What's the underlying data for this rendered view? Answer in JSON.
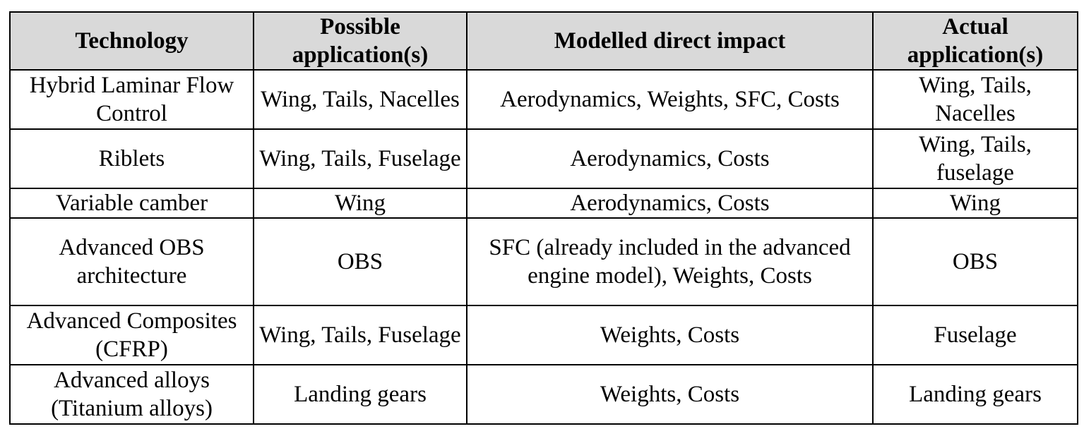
{
  "table": {
    "headers": [
      "Technology",
      "Possible application(s)",
      "Modelled direct impact",
      "Actual application(s)"
    ],
    "rows": [
      {
        "technology": "Hybrid Laminar Flow Control",
        "possible": "Wing, Tails, Nacelles",
        "impact": "Aerodynamics, Weights, SFC, Costs",
        "actual": "Wing, Tails, Nacelles"
      },
      {
        "technology": "Riblets",
        "possible": "Wing, Tails, Fuselage",
        "impact": "Aerodynamics, Costs",
        "actual": "Wing, Tails, fuselage"
      },
      {
        "technology": "Variable camber",
        "possible": "Wing",
        "impact": "Aerodynamics, Costs",
        "actual": "Wing"
      },
      {
        "technology": "Advanced OBS architecture",
        "possible": "OBS",
        "impact": "SFC (already included in the advanced engine model), Weights, Costs",
        "actual": "OBS"
      },
      {
        "technology": "Advanced Composites (CFRP)",
        "possible": "Wing, Tails, Fuselage",
        "impact": "Weights, Costs",
        "actual": "Fuselage"
      },
      {
        "technology": "Advanced alloys (Titanium alloys)",
        "possible": "Landing gears",
        "impact": "Weights, Costs",
        "actual": "Landing gears"
      }
    ]
  }
}
